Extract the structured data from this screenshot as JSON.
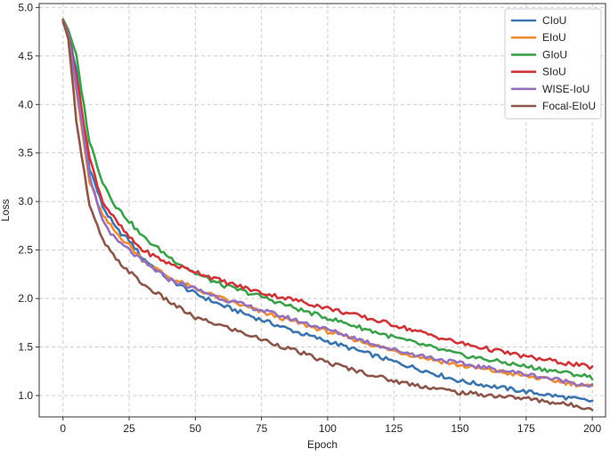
{
  "chart_data": {
    "type": "line",
    "title": "",
    "xlabel": "Epoch",
    "ylabel": "Loss",
    "xlim": [
      -9,
      205
    ],
    "ylim": [
      0.78,
      5.04
    ],
    "xticks": [
      0,
      25,
      50,
      75,
      100,
      125,
      150,
      175,
      200
    ],
    "yticks": [
      1.0,
      1.5,
      2.0,
      2.5,
      3.0,
      3.5,
      4.0,
      4.5,
      5.0
    ],
    "xtick_labels": [
      "0",
      "25",
      "50",
      "75",
      "100",
      "125",
      "150",
      "175",
      "200"
    ],
    "ytick_labels": [
      "1.0",
      "1.5",
      "2.0",
      "2.5",
      "3.0",
      "3.5",
      "4.0",
      "4.5",
      "5.0"
    ],
    "grid": true,
    "legend_position": "top-right",
    "x": [
      0,
      2,
      5,
      10,
      15,
      20,
      25,
      30,
      40,
      50,
      60,
      75,
      90,
      100,
      125,
      150,
      175,
      200
    ],
    "series": [
      {
        "name": "CIoU",
        "color": "#3a75b0",
        "values": [
          4.87,
          4.75,
          4.35,
          3.35,
          2.95,
          2.72,
          2.6,
          2.42,
          2.2,
          2.05,
          1.93,
          1.78,
          1.64,
          1.56,
          1.35,
          1.15,
          1.04,
          0.94
        ]
      },
      {
        "name": "EIoU",
        "color": "#f28b30",
        "values": [
          4.86,
          4.7,
          4.15,
          3.2,
          2.85,
          2.68,
          2.55,
          2.4,
          2.22,
          2.1,
          2.0,
          1.86,
          1.74,
          1.66,
          1.46,
          1.31,
          1.2,
          1.09
        ]
      },
      {
        "name": "GIoU",
        "color": "#3ba24b",
        "values": [
          4.88,
          4.77,
          4.5,
          3.62,
          3.2,
          2.95,
          2.8,
          2.64,
          2.43,
          2.26,
          2.14,
          2.02,
          1.88,
          1.8,
          1.6,
          1.42,
          1.3,
          1.19
        ]
      },
      {
        "name": "SIoU",
        "color": "#cf3439",
        "values": [
          4.87,
          4.73,
          4.3,
          3.45,
          3.0,
          2.8,
          2.63,
          2.5,
          2.36,
          2.28,
          2.18,
          2.06,
          1.97,
          1.9,
          1.73,
          1.54,
          1.4,
          1.29
        ]
      },
      {
        "name": "WISE-IoU",
        "color": "#9470bd",
        "values": [
          4.86,
          4.72,
          4.2,
          3.25,
          2.8,
          2.6,
          2.5,
          2.38,
          2.2,
          2.1,
          2.0,
          1.88,
          1.76,
          1.68,
          1.47,
          1.33,
          1.22,
          1.1
        ]
      },
      {
        "name": "Focal-EIoU",
        "color": "#8c564b",
        "values": [
          4.85,
          4.68,
          3.85,
          2.95,
          2.6,
          2.4,
          2.28,
          2.15,
          1.97,
          1.8,
          1.72,
          1.58,
          1.44,
          1.34,
          1.15,
          1.03,
          0.97,
          0.87
        ]
      }
    ]
  }
}
